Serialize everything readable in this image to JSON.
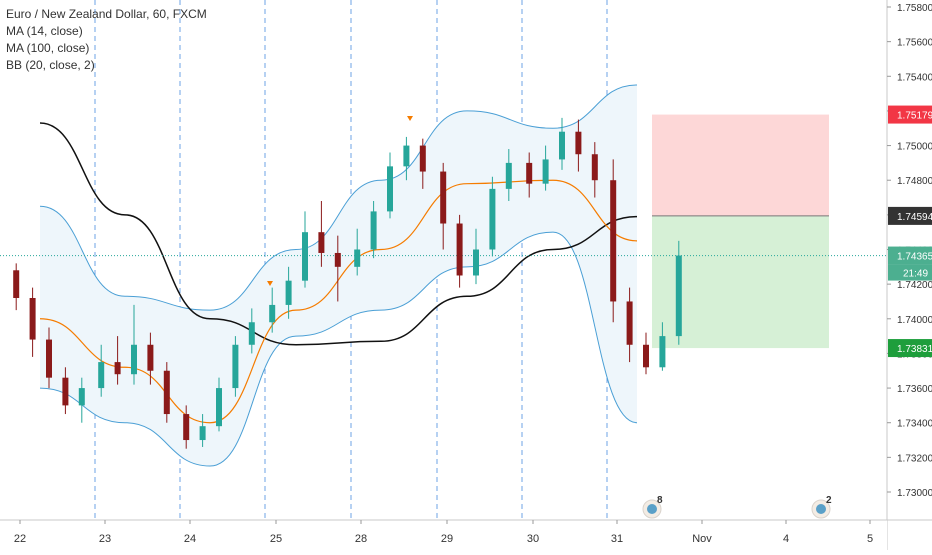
{
  "legend": {
    "title": "Euro / New Zealand Dollar, 60, FXCM",
    "ma14": "MA (14, close)",
    "ma100": "MA (100, close)",
    "bb": "BB (20, close, 2)"
  },
  "price_badges": {
    "stop": "1.75179",
    "ma100": "1.74594",
    "last": "1.74365",
    "countdown": "21:49",
    "target": "1.73831"
  },
  "event_markers": [
    {
      "label": "8",
      "date": "31"
    },
    {
      "label": "2",
      "date": "4"
    }
  ],
  "colors": {
    "up": "#26a69a",
    "down": "#8b1a1a",
    "ma14": "#f57c00",
    "ma100": "#111111",
    "bb_line": "#4a9fd5",
    "bb_fill": "#eef6fb",
    "risk_zone": "#fdd7d7",
    "reward_zone": "#d6f0d6",
    "stop_badge": "#f23645",
    "target_badge": "#1e9e3c",
    "last_badge": "#4caf90",
    "ma100_badge": "#333333",
    "session_line": "#4a8de0"
  },
  "chart_data": {
    "type": "line",
    "title": "Euro / New Zealand Dollar, 60, FXCM",
    "y_axis": {
      "ticks": [
        "1.75800",
        "1.75600",
        "1.75400",
        "1.75200",
        "1.75000",
        "1.74800",
        "1.74600",
        "1.74400",
        "1.74200",
        "1.74000",
        "1.73800",
        "1.73600",
        "1.73400",
        "1.73200",
        "1.73000"
      ],
      "range": [
        1.7292,
        1.7591
      ]
    },
    "x_axis": {
      "tick_labels": [
        "22",
        "23",
        "24",
        "25",
        "28",
        "29",
        "30",
        "31",
        "Nov",
        "4",
        "5"
      ],
      "session_breaks": [
        "23",
        "24",
        "25",
        "28",
        "29",
        "30",
        "31"
      ]
    },
    "grid": false,
    "series": [
      {
        "name": "MA (14, close)",
        "key": "ma14",
        "x": [
          "22",
          "23",
          "24",
          "25",
          "28",
          "29",
          "30",
          "31"
        ],
        "values": [
          1.74,
          1.7372,
          1.734,
          1.7405,
          1.744,
          1.7478,
          1.748,
          1.7445
        ]
      },
      {
        "name": "MA (100, close)",
        "key": "ma100",
        "x": [
          "22",
          "23",
          "24",
          "25",
          "28",
          "29",
          "30",
          "31"
        ],
        "values": [
          1.7513,
          1.746,
          1.74,
          1.7385,
          1.7387,
          1.7413,
          1.744,
          1.7459
        ]
      },
      {
        "name": "BB (20, close, 2) upper",
        "key": "bb_upper",
        "x": [
          "22",
          "23",
          "24",
          "25",
          "28",
          "29",
          "30",
          "31"
        ],
        "values": [
          1.7465,
          1.7413,
          1.7405,
          1.744,
          1.748,
          1.752,
          1.751,
          1.7535
        ]
      },
      {
        "name": "BB (20, close, 2) lower",
        "key": "bb_lower",
        "x": [
          "22",
          "23",
          "24",
          "25",
          "28",
          "29",
          "30",
          "31"
        ],
        "values": [
          1.736,
          1.734,
          1.7315,
          1.739,
          1.7405,
          1.743,
          1.745,
          1.734
        ]
      }
    ],
    "candles": [
      {
        "x": "22",
        "open": 1.7428,
        "close": 1.7412,
        "high": 1.7432,
        "low": 1.7405
      },
      {
        "x": "22",
        "open": 1.7412,
        "close": 1.7388,
        "high": 1.7418,
        "low": 1.7378
      },
      {
        "x": "22",
        "open": 1.7388,
        "close": 1.7366,
        "high": 1.7395,
        "low": 1.736
      },
      {
        "x": "22",
        "open": 1.7366,
        "close": 1.735,
        "high": 1.7372,
        "low": 1.7345
      },
      {
        "x": "22",
        "open": 1.735,
        "close": 1.736,
        "high": 1.7366,
        "low": 1.734
      },
      {
        "x": "23",
        "open": 1.736,
        "close": 1.7375,
        "high": 1.7385,
        "low": 1.7355
      },
      {
        "x": "23",
        "open": 1.7375,
        "close": 1.7368,
        "high": 1.739,
        "low": 1.7362
      },
      {
        "x": "23",
        "open": 1.7368,
        "close": 1.7385,
        "high": 1.7408,
        "low": 1.7362
      },
      {
        "x": "23",
        "open": 1.7385,
        "close": 1.737,
        "high": 1.7392,
        "low": 1.7362
      },
      {
        "x": "23",
        "open": 1.737,
        "close": 1.7345,
        "high": 1.7375,
        "low": 1.734
      },
      {
        "x": "24",
        "open": 1.7345,
        "close": 1.733,
        "high": 1.735,
        "low": 1.7325
      },
      {
        "x": "24",
        "open": 1.733,
        "close": 1.7338,
        "high": 1.7345,
        "low": 1.7326
      },
      {
        "x": "24",
        "open": 1.7338,
        "close": 1.736,
        "high": 1.7366,
        "low": 1.7335
      },
      {
        "x": "24",
        "open": 1.736,
        "close": 1.7385,
        "high": 1.739,
        "low": 1.7355
      },
      {
        "x": "24",
        "open": 1.7385,
        "close": 1.7398,
        "high": 1.7406,
        "low": 1.738
      },
      {
        "x": "25",
        "open": 1.7398,
        "close": 1.7408,
        "high": 1.7418,
        "low": 1.7392
      },
      {
        "x": "25",
        "open": 1.7408,
        "close": 1.7422,
        "high": 1.743,
        "low": 1.74
      },
      {
        "x": "25",
        "open": 1.7422,
        "close": 1.745,
        "high": 1.7462,
        "low": 1.7418
      },
      {
        "x": "25",
        "open": 1.745,
        "close": 1.7438,
        "high": 1.7468,
        "low": 1.743
      },
      {
        "x": "25",
        "open": 1.7438,
        "close": 1.743,
        "high": 1.7448,
        "low": 1.741
      },
      {
        "x": "28",
        "open": 1.743,
        "close": 1.744,
        "high": 1.7452,
        "low": 1.7425
      },
      {
        "x": "28",
        "open": 1.744,
        "close": 1.7462,
        "high": 1.7468,
        "low": 1.7435
      },
      {
        "x": "28",
        "open": 1.7462,
        "close": 1.7488,
        "high": 1.7496,
        "low": 1.7458
      },
      {
        "x": "28",
        "open": 1.7488,
        "close": 1.75,
        "high": 1.7505,
        "low": 1.748
      },
      {
        "x": "28",
        "open": 1.75,
        "close": 1.7485,
        "high": 1.7504,
        "low": 1.7475
      },
      {
        "x": "29",
        "open": 1.7485,
        "close": 1.7455,
        "high": 1.749,
        "low": 1.744
      },
      {
        "x": "29",
        "open": 1.7455,
        "close": 1.7425,
        "high": 1.746,
        "low": 1.7418
      },
      {
        "x": "29",
        "open": 1.7425,
        "close": 1.744,
        "high": 1.7452,
        "low": 1.742
      },
      {
        "x": "29",
        "open": 1.744,
        "close": 1.7475,
        "high": 1.7482,
        "low": 1.7436
      },
      {
        "x": "29",
        "open": 1.7475,
        "close": 1.749,
        "high": 1.7498,
        "low": 1.7468
      },
      {
        "x": "30",
        "open": 1.749,
        "close": 1.7478,
        "high": 1.7496,
        "low": 1.747
      },
      {
        "x": "30",
        "open": 1.7478,
        "close": 1.7492,
        "high": 1.75,
        "low": 1.7474
      },
      {
        "x": "30",
        "open": 1.7492,
        "close": 1.7508,
        "high": 1.7516,
        "low": 1.7486
      },
      {
        "x": "30",
        "open": 1.7508,
        "close": 1.7495,
        "high": 1.7515,
        "low": 1.7485
      },
      {
        "x": "30",
        "open": 1.7495,
        "close": 1.748,
        "high": 1.7502,
        "low": 1.747
      },
      {
        "x": "31",
        "open": 1.748,
        "close": 1.741,
        "high": 1.7492,
        "low": 1.7398
      },
      {
        "x": "31",
        "open": 1.741,
        "close": 1.7385,
        "high": 1.7418,
        "low": 1.7375
      },
      {
        "x": "31",
        "open": 1.7385,
        "close": 1.7372,
        "high": 1.7392,
        "low": 1.7368
      },
      {
        "x": "31",
        "open": 1.7372,
        "close": 1.739,
        "high": 1.7398,
        "low": 1.737
      },
      {
        "x": "31",
        "open": 1.739,
        "close": 1.74365,
        "high": 1.7445,
        "low": 1.7385
      }
    ],
    "position_tool": {
      "stop": 1.75179,
      "entry": 1.74594,
      "target": 1.73831
    },
    "last_price": 1.74365
  }
}
